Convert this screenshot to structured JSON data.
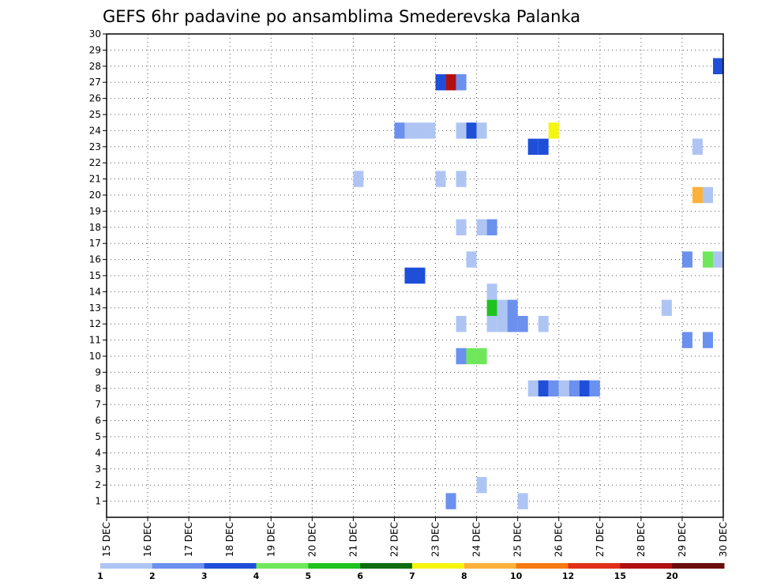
{
  "chart_data": {
    "type": "heatmap",
    "title": "GEFS 6hr padavine po ansamblima Smederevska Palanka",
    "xlabel": "",
    "ylabel": "",
    "x_ticks": [
      "15 DEC",
      "16 DEC",
      "17 DEC",
      "18 DEC",
      "19 DEC",
      "20 DEC",
      "21 DEC",
      "22 DEC",
      "23 DEC",
      "24 DEC",
      "25 DEC",
      "26 DEC",
      "27 DEC",
      "28 DEC",
      "29 DEC",
      "30 DEC"
    ],
    "x_range_days": [
      0,
      15
    ],
    "y_range_members": [
      0,
      30
    ],
    "y_ticks": [
      1,
      2,
      3,
      4,
      5,
      6,
      7,
      8,
      9,
      10,
      11,
      12,
      13,
      14,
      15,
      16,
      17,
      18,
      19,
      20,
      21,
      22,
      23,
      24,
      25,
      26,
      27,
      28,
      29,
      30
    ],
    "grid": true,
    "legend_position": "bottom",
    "legend": {
      "colors": [
        "#aec5f4",
        "#6b90ee",
        "#1f4fd8",
        "#6ee85a",
        "#1fc21f",
        "#0e6e0e",
        "#f5f510",
        "#fbb13a",
        "#f57a10",
        "#e0301a",
        "#b01010",
        "#6a0d0d"
      ],
      "labels": [
        "1",
        "2",
        "3",
        "4",
        "5",
        "6",
        "7",
        "8",
        "10",
        "12",
        "15",
        "20"
      ]
    },
    "cells": [
      {
        "t": 10.0,
        "m": 1,
        "c": 0
      },
      {
        "t": 8.25,
        "m": 1,
        "c": 1
      },
      {
        "t": 8.0,
        "m": 27,
        "c": 2
      },
      {
        "t": 8.25,
        "m": 27,
        "c": 10
      },
      {
        "t": 8.5,
        "m": 27,
        "c": 1
      },
      {
        "t": 14.75,
        "m": 28,
        "c": 2
      },
      {
        "t": 7.0,
        "m": 24,
        "c": 1
      },
      {
        "t": 7.25,
        "m": 24,
        "c": 0
      },
      {
        "t": 7.5,
        "m": 24,
        "c": 0
      },
      {
        "t": 7.75,
        "m": 24,
        "c": 0
      },
      {
        "t": 8.5,
        "m": 24,
        "c": 0
      },
      {
        "t": 8.75,
        "m": 24,
        "c": 2
      },
      {
        "t": 9.0,
        "m": 24,
        "c": 0
      },
      {
        "t": 10.75,
        "m": 24,
        "c": 6
      },
      {
        "t": 10.25,
        "m": 23,
        "c": 2
      },
      {
        "t": 10.5,
        "m": 23,
        "c": 2
      },
      {
        "t": 14.25,
        "m": 23,
        "c": 0
      },
      {
        "t": 6.0,
        "m": 21,
        "c": 0
      },
      {
        "t": 8.0,
        "m": 21,
        "c": 0
      },
      {
        "t": 8.5,
        "m": 21,
        "c": 0
      },
      {
        "t": 14.25,
        "m": 20,
        "c": 7
      },
      {
        "t": 14.5,
        "m": 20,
        "c": 0
      },
      {
        "t": 8.5,
        "m": 18,
        "c": 0
      },
      {
        "t": 9.0,
        "m": 18,
        "c": 0
      },
      {
        "t": 9.25,
        "m": 18,
        "c": 1
      },
      {
        "t": 8.75,
        "m": 16,
        "c": 0
      },
      {
        "t": 14.0,
        "m": 16,
        "c": 1
      },
      {
        "t": 14.5,
        "m": 16,
        "c": 3
      },
      {
        "t": 14.75,
        "m": 16,
        "c": 0
      },
      {
        "t": 7.25,
        "m": 15,
        "c": 2
      },
      {
        "t": 7.5,
        "m": 15,
        "c": 2
      },
      {
        "t": 9.25,
        "m": 14,
        "c": 0
      },
      {
        "t": 9.25,
        "m": 13,
        "c": 4
      },
      {
        "t": 9.5,
        "m": 13,
        "c": 0
      },
      {
        "t": 9.75,
        "m": 13,
        "c": 1
      },
      {
        "t": 13.5,
        "m": 13,
        "c": 0
      },
      {
        "t": 8.5,
        "m": 12,
        "c": 0
      },
      {
        "t": 9.25,
        "m": 12,
        "c": 0
      },
      {
        "t": 9.5,
        "m": 12,
        "c": 0
      },
      {
        "t": 9.75,
        "m": 12,
        "c": 1
      },
      {
        "t": 10.0,
        "m": 12,
        "c": 1
      },
      {
        "t": 10.5,
        "m": 12,
        "c": 0
      },
      {
        "t": 14.0,
        "m": 11,
        "c": 1
      },
      {
        "t": 14.5,
        "m": 11,
        "c": 1
      },
      {
        "t": 8.5,
        "m": 10,
        "c": 1
      },
      {
        "t": 8.75,
        "m": 10,
        "c": 3
      },
      {
        "t": 9.0,
        "m": 10,
        "c": 3
      },
      {
        "t": 10.25,
        "m": 8,
        "c": 0
      },
      {
        "t": 10.5,
        "m": 8,
        "c": 2
      },
      {
        "t": 10.75,
        "m": 8,
        "c": 1
      },
      {
        "t": 11.0,
        "m": 8,
        "c": 0
      },
      {
        "t": 11.25,
        "m": 8,
        "c": 1
      },
      {
        "t": 11.5,
        "m": 8,
        "c": 2
      },
      {
        "t": 11.75,
        "m": 8,
        "c": 1
      },
      {
        "t": 9.0,
        "m": 2,
        "c": 0
      }
    ]
  }
}
